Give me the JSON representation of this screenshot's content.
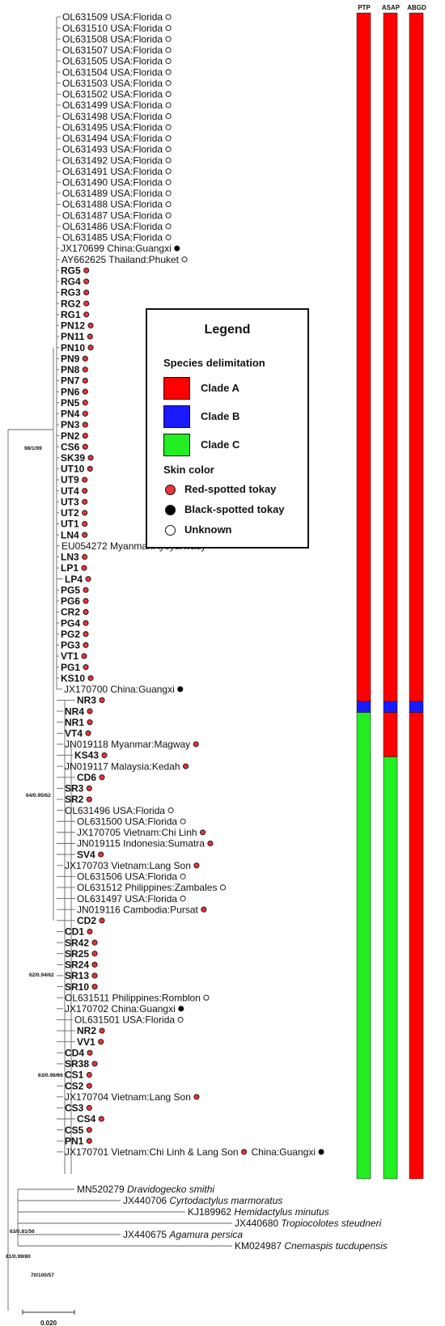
{
  "legend": {
    "title": "Legend",
    "species_heading": "Species delimitation",
    "skin_heading": "Skin color",
    "clades": [
      {
        "label": "Clade A",
        "color": "#ff0000"
      },
      {
        "label": "Clade B",
        "color": "#1a1aff"
      },
      {
        "label": "Clade C",
        "color": "#22ee22"
      }
    ],
    "skin": [
      {
        "label": "Red-spotted tokay",
        "color": "#e8343c"
      },
      {
        "label": "Black-spotted tokay",
        "color": "#000000"
      },
      {
        "label": "Unknown",
        "color": "#ffffff"
      }
    ]
  },
  "columns": [
    "PTP",
    "ASAP",
    "ABGD"
  ],
  "colors": {
    "A": "#ff0000",
    "B": "#1a1aff",
    "C": "#22ee22"
  },
  "taxa": [
    {
      "name": "OL631509 USA:Florida",
      "dot": "u"
    },
    {
      "name": "OL631510 USA:Florida",
      "dot": "u"
    },
    {
      "name": "OL631508 USA:Florida",
      "dot": "u"
    },
    {
      "name": "OL631507 USA:Florida",
      "dot": "u"
    },
    {
      "name": "OL631505 USA:Florida",
      "dot": "u"
    },
    {
      "name": "OL631504 USA:Florida",
      "dot": "u"
    },
    {
      "name": "OL631503 USA:Florida",
      "dot": "u"
    },
    {
      "name": "OL631502 USA:Florida",
      "dot": "u"
    },
    {
      "name": "OL631499 USA:Florida",
      "dot": "u"
    },
    {
      "name": "OL631498 USA:Florida",
      "dot": "u"
    },
    {
      "name": "OL631495 USA:Florida",
      "dot": "u"
    },
    {
      "name": "OL631494 USA:Florida",
      "dot": "u"
    },
    {
      "name": "OL631493 USA:Florida",
      "dot": "u"
    },
    {
      "name": "OL631492 USA:Florida",
      "dot": "u"
    },
    {
      "name": "OL631491 USA:Florida",
      "dot": "u"
    },
    {
      "name": "OL631490 USA:Florida",
      "dot": "u"
    },
    {
      "name": "OL631489 USA:Florida",
      "dot": "u"
    },
    {
      "name": "OL631488 USA:Florida",
      "dot": "u"
    },
    {
      "name": "OL631487 USA:Florida",
      "dot": "u"
    },
    {
      "name": "OL631486 USA:Florida",
      "dot": "u"
    },
    {
      "name": "OL631485 USA:Florida",
      "dot": "u"
    },
    {
      "name": "JX170699 China:Guangxi",
      "dot": "b"
    },
    {
      "name": "AY662625 Thailand:Phuket",
      "dot": "u"
    },
    {
      "name": "RG5",
      "dot": "r",
      "bold": true
    },
    {
      "name": "RG4",
      "dot": "r",
      "bold": true
    },
    {
      "name": "RG3",
      "dot": "r",
      "bold": true
    },
    {
      "name": "RG2",
      "dot": "r",
      "bold": true
    },
    {
      "name": "RG1",
      "dot": "r",
      "bold": true
    },
    {
      "name": "PN12",
      "dot": "r",
      "bold": true
    },
    {
      "name": "PN11",
      "dot": "r",
      "bold": true
    },
    {
      "name": "PN10",
      "dot": "r",
      "bold": true
    },
    {
      "name": "PN9",
      "dot": "r",
      "bold": true
    },
    {
      "name": "PN8",
      "dot": "r",
      "bold": true
    },
    {
      "name": "PN7",
      "dot": "r",
      "bold": true
    },
    {
      "name": "PN6",
      "dot": "r",
      "bold": true
    },
    {
      "name": "PN5",
      "dot": "r",
      "bold": true
    },
    {
      "name": "PN4",
      "dot": "r",
      "bold": true
    },
    {
      "name": "PN3",
      "dot": "r",
      "bold": true
    },
    {
      "name": "PN2",
      "dot": "r",
      "bold": true
    },
    {
      "name": "CS6",
      "dot": "r",
      "bold": true
    },
    {
      "name": "SK39",
      "dot": "r",
      "bold": true
    },
    {
      "name": "UT10",
      "dot": "r",
      "bold": true
    },
    {
      "name": "UT9",
      "dot": "r",
      "bold": true
    },
    {
      "name": "UT4",
      "dot": "r",
      "bold": true
    },
    {
      "name": "UT3",
      "dot": "r",
      "bold": true
    },
    {
      "name": "UT2",
      "dot": "r",
      "bold": true
    },
    {
      "name": "UT1",
      "dot": "r",
      "bold": true
    },
    {
      "name": "LN4",
      "dot": "r",
      "bold": true
    },
    {
      "name": "EU054272 Myanmar:Ayeyarwady",
      "dot": "r"
    },
    {
      "name": "LN3",
      "dot": "r",
      "bold": true
    },
    {
      "name": "LP1",
      "dot": "r",
      "bold": true
    },
    {
      "name": "LP4",
      "dot": "r",
      "bold": true
    },
    {
      "name": "PG5",
      "dot": "r",
      "bold": true
    },
    {
      "name": "PG6",
      "dot": "r",
      "bold": true
    },
    {
      "name": "CR2",
      "dot": "r",
      "bold": true
    },
    {
      "name": "PG4",
      "dot": "r",
      "bold": true
    },
    {
      "name": "PG2",
      "dot": "r",
      "bold": true
    },
    {
      "name": "PG3",
      "dot": "r",
      "bold": true
    },
    {
      "name": "VT1",
      "dot": "r",
      "bold": true
    },
    {
      "name": "PG1",
      "dot": "r",
      "bold": true
    },
    {
      "name": "KS10",
      "dot": "r",
      "bold": true
    },
    {
      "name": "JX170700 China:Guangxi",
      "dot": "b"
    },
    {
      "name": "NR3",
      "dot": "r",
      "bold": true
    },
    {
      "name": "NR4",
      "dot": "r",
      "bold": true
    },
    {
      "name": "NR1",
      "dot": "r",
      "bold": true
    },
    {
      "name": "VT4",
      "dot": "r",
      "bold": true
    },
    {
      "name": "JN019118 Myanmar:Magway",
      "dot": "r"
    },
    {
      "name": "KS43",
      "dot": "r",
      "bold": true
    },
    {
      "name": "JN019117 Malaysia:Kedah",
      "dot": "r"
    },
    {
      "name": "CD6",
      "dot": "r",
      "bold": true
    },
    {
      "name": "SR3",
      "dot": "r",
      "bold": true
    },
    {
      "name": "SR2",
      "dot": "r",
      "bold": true
    },
    {
      "name": "OL631496 USA:Florida",
      "dot": "u"
    },
    {
      "name": "OL631500 USA:Florida",
      "dot": "u"
    },
    {
      "name": "JX170705 Vietnam:Chi Linh",
      "dot": "r"
    },
    {
      "name": "JN019115 Indonesia:Sumatra",
      "dot": "r"
    },
    {
      "name": "SV4",
      "dot": "r",
      "bold": true
    },
    {
      "name": "JX170703 Vietnam:Lang Son",
      "dot": "r"
    },
    {
      "name": "OL631506 USA:Florida",
      "dot": "u"
    },
    {
      "name": "OL631512 Philippines:Zambales",
      "dot": "u"
    },
    {
      "name": "OL631497 USA:Florida",
      "dot": "u"
    },
    {
      "name": "JN019116 Cambodia:Pursat",
      "dot": "r"
    },
    {
      "name": "CD2",
      "dot": "r",
      "bold": true
    },
    {
      "name": "CD1",
      "dot": "r",
      "bold": true
    },
    {
      "name": "SR42",
      "dot": "r",
      "bold": true
    },
    {
      "name": "SR25",
      "dot": "r",
      "bold": true
    },
    {
      "name": "SR24",
      "dot": "r",
      "bold": true
    },
    {
      "name": "SR13",
      "dot": "r",
      "bold": true
    },
    {
      "name": "SR10",
      "dot": "r",
      "bold": true
    },
    {
      "name": "OL631511 Philippines:Romblon",
      "dot": "u"
    },
    {
      "name": "JX170702 China:Guangxi",
      "dot": "b"
    },
    {
      "name": "OL631501 USA:Florida",
      "dot": "u"
    },
    {
      "name": "NR2",
      "dot": "r",
      "bold": true
    },
    {
      "name": "VV1",
      "dot": "r",
      "bold": true
    },
    {
      "name": "CD4",
      "dot": "r",
      "bold": true
    },
    {
      "name": "SR38",
      "dot": "r",
      "bold": true
    },
    {
      "name": "CS1",
      "dot": "r",
      "bold": true
    },
    {
      "name": "CS2",
      "dot": "r",
      "bold": true
    },
    {
      "name": "JX170704 Vietnam:Lang Son",
      "dot": "r"
    },
    {
      "name": "CS3",
      "dot": "r",
      "bold": true
    },
    {
      "name": "CS4",
      "dot": "r",
      "bold": true
    },
    {
      "name": "CS5",
      "dot": "r",
      "bold": true
    },
    {
      "name": "PN1",
      "dot": "r",
      "bold": true
    },
    {
      "name": "JX170701 Vietnam:Chi Linh & Lang Son",
      "dot": "r",
      "extra": "China:Guangxi",
      "extra_dot": "b"
    }
  ],
  "outgroups": [
    {
      "acc": "MN520279",
      "species": "Dravidogecko smithi"
    },
    {
      "acc": "JX440706",
      "species": "Cyrtodactylus marmoratus"
    },
    {
      "acc": "KJ189962",
      "species": "Hemidactylus minutus"
    },
    {
      "acc": "JX440680",
      "species": "Tropiocolotes steudneri"
    },
    {
      "acc": "JX440675",
      "species": "Agamura persica"
    },
    {
      "acc": "KM024987",
      "species": "Cnemaspis tucdupensis"
    }
  ],
  "support": [
    "98/1/99",
    "64/0.95/62",
    "62/0.94/62",
    "63/0.96/61",
    "63/0.81/56",
    "81/0.99/80",
    "70/100/57"
  ],
  "scale_label": "0.020",
  "bars": {
    "PTP": [
      {
        "clade": "A",
        "from": 0,
        "to": 62
      },
      {
        "clade": "B",
        "from": 62,
        "to": 63
      },
      {
        "clade": "C",
        "from": 63,
        "to": 105
      }
    ],
    "ASAP": [
      {
        "clade": "A",
        "from": 0,
        "to": 62
      },
      {
        "clade": "B",
        "from": 62,
        "to": 63
      },
      {
        "clade": "A",
        "from": 63,
        "to": 67
      },
      {
        "clade": "C",
        "from": 67,
        "to": 105
      }
    ],
    "ABGD": [
      {
        "clade": "A",
        "from": 0,
        "to": 62
      },
      {
        "clade": "B",
        "from": 62,
        "to": 63
      },
      {
        "clade": "A",
        "from": 63,
        "to": 105
      }
    ]
  }
}
